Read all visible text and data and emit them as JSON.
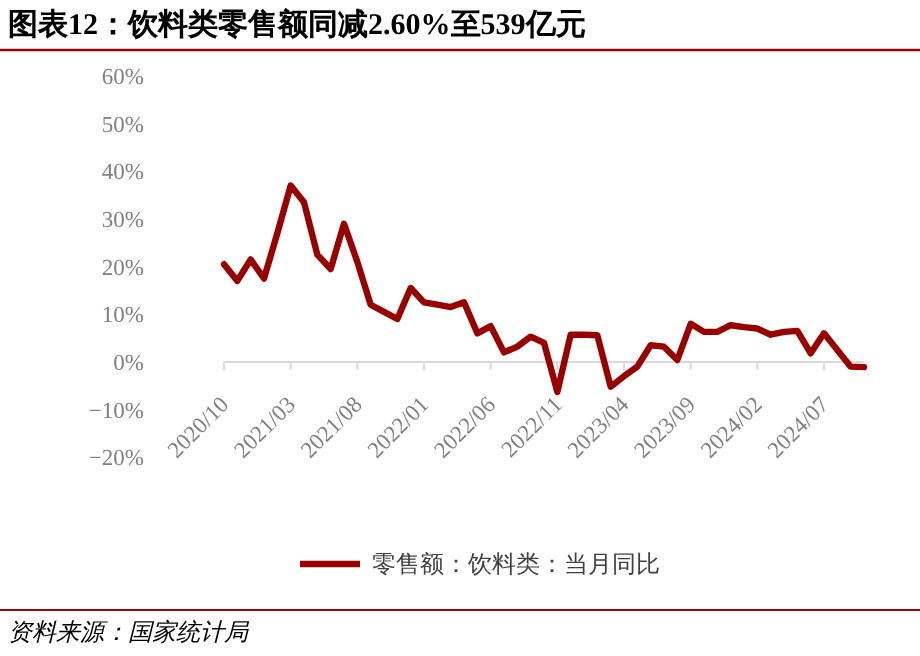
{
  "chart_data": {
    "type": "line",
    "title": "图表12：饮料类零售额同减2.60%至539亿元",
    "categories": [
      "2020/10",
      null,
      null,
      null,
      null,
      "2021/03",
      null,
      null,
      null,
      null,
      "2021/08",
      null,
      null,
      null,
      null,
      "2022/01",
      null,
      null,
      null,
      null,
      "2022/06",
      null,
      null,
      null,
      null,
      "2022/11",
      null,
      null,
      null,
      null,
      "2023/04",
      null,
      null,
      null,
      null,
      "2023/09",
      null,
      null,
      null,
      null,
      "2024/02",
      null,
      null,
      null,
      null,
      "2024/07",
      null,
      null,
      null
    ],
    "series": [
      {
        "name": "零售额：饮料类：当月同比",
        "color": "#990000",
        "values": [
          20.5,
          17,
          21.5,
          17.5,
          27,
          37,
          33.5,
          22.5,
          19.5,
          29,
          21,
          12,
          10.5,
          9,
          15.5,
          12.5,
          12,
          11.5,
          12.5,
          6,
          7.5,
          2,
          3.2,
          5.3,
          4,
          -6.3,
          5.7,
          5.7,
          5.6,
          -5.2,
          -3,
          -1,
          3.5,
          3.2,
          0.4,
          8,
          6.3,
          6.3,
          7.7,
          7.3,
          7,
          5.7,
          6.3,
          6.5,
          1.8,
          6,
          2.5,
          -1,
          -1.1
        ]
      }
    ],
    "ylim": [
      -20,
      60
    ],
    "yticks": [
      {
        "value": -20,
        "label": "−20%"
      },
      {
        "value": -10,
        "label": "−10%"
      },
      {
        "value": 0,
        "label": "0%"
      },
      {
        "value": 10,
        "label": "10%"
      },
      {
        "value": 20,
        "label": "20%"
      },
      {
        "value": 30,
        "label": "30%"
      },
      {
        "value": 40,
        "label": "40%"
      },
      {
        "value": 50,
        "label": "50%"
      },
      {
        "value": 60,
        "label": "60%"
      }
    ],
    "legend": "bottom",
    "grid": false,
    "annotations": [
      "资料来源：国家统计局"
    ]
  }
}
